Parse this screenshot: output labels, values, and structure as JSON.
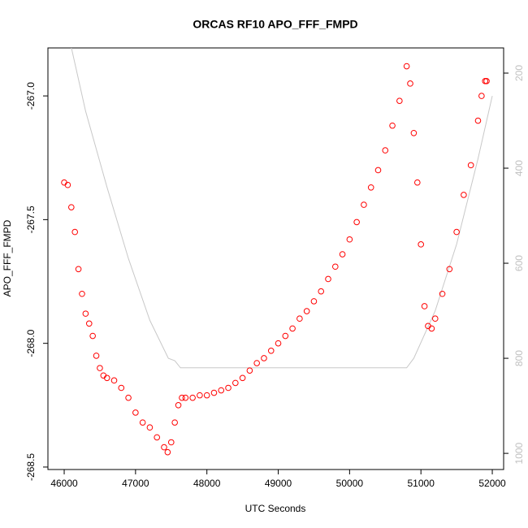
{
  "chart_data": {
    "type": "scatter",
    "title": "ORCAS RF10 APO_FFF_FMPD",
    "x_label": "UTC Seconds",
    "y_label": "APO_FFF_FMPD",
    "xlim": [
      45772,
      52159
    ],
    "ylim": [
      -268.51,
      -266.806
    ],
    "y2lim": [
      1034,
      147
    ],
    "xticks": [
      46000,
      47000,
      48000,
      49000,
      50000,
      51000,
      52000
    ],
    "yticks": [
      {
        "value": -267.0,
        "label": "-267.0"
      },
      {
        "value": -267.5,
        "label": "-267.5"
      },
      {
        "value": -268.0,
        "label": "-268.0"
      },
      {
        "value": -268.5,
        "label": "-268.5"
      }
    ],
    "y2ticks": [
      200,
      400,
      600,
      800,
      1000
    ],
    "series": [
      {
        "type": "scatter",
        "color": "#ff0000",
        "x": [
          46000,
          46050,
          46100,
          46150,
          46200,
          46250,
          46300,
          46350,
          46400,
          46450,
          46500,
          46550,
          46600,
          46700,
          46800,
          46900,
          47000,
          47100,
          47200,
          47300,
          47400,
          47450,
          47500,
          47550,
          47600,
          47650,
          47700,
          47800,
          47900,
          48000,
          48100,
          48200,
          48300,
          48400,
          48500,
          48600,
          48700,
          48800,
          48900,
          49000,
          49100,
          49200,
          49300,
          49400,
          49500,
          49600,
          49700,
          49800,
          49900,
          50000,
          50100,
          50200,
          50300,
          50400,
          50500,
          50600,
          50700,
          50800,
          50850,
          50900,
          50950,
          51000,
          51050,
          51100,
          51150,
          51200,
          51300,
          51400,
          51500,
          51600,
          51700,
          51800,
          51850,
          51900,
          51920
        ],
        "values": [
          -267.35,
          -267.36,
          -267.45,
          -267.55,
          -267.7,
          -267.8,
          -267.88,
          -267.92,
          -267.97,
          -268.05,
          -268.1,
          -268.13,
          -268.14,
          -268.15,
          -268.18,
          -268.22,
          -268.28,
          -268.32,
          -268.34,
          -268.38,
          -268.42,
          -268.44,
          -268.4,
          -268.32,
          -268.25,
          -268.22,
          -268.22,
          -268.22,
          -268.21,
          -268.21,
          -268.2,
          -268.19,
          -268.18,
          -268.16,
          -268.14,
          -268.11,
          -268.08,
          -268.06,
          -268.03,
          -268.0,
          -267.97,
          -267.94,
          -267.9,
          -267.87,
          -267.83,
          -267.79,
          -267.74,
          -267.69,
          -267.64,
          -267.58,
          -267.51,
          -267.44,
          -267.37,
          -267.3,
          -267.22,
          -267.12,
          -267.02,
          -266.88,
          -266.95,
          -267.15,
          -267.35,
          -267.6,
          -267.85,
          -267.93,
          -267.94,
          -267.9,
          -267.8,
          -267.7,
          -267.55,
          -267.4,
          -267.28,
          -267.1,
          -267.0,
          -266.94,
          -266.94
        ]
      },
      {
        "type": "line",
        "axis": "y2",
        "color": "#c8c8c8",
        "x": [
          46100,
          46300,
          46600,
          46900,
          47200,
          47460,
          47550,
          47630,
          50800,
          50900,
          51200,
          51500,
          51800,
          52000
        ],
        "values": [
          146,
          280,
          440,
          590,
          720,
          800,
          805,
          820,
          820,
          800,
          700,
          560,
          380,
          248
        ]
      }
    ]
  }
}
